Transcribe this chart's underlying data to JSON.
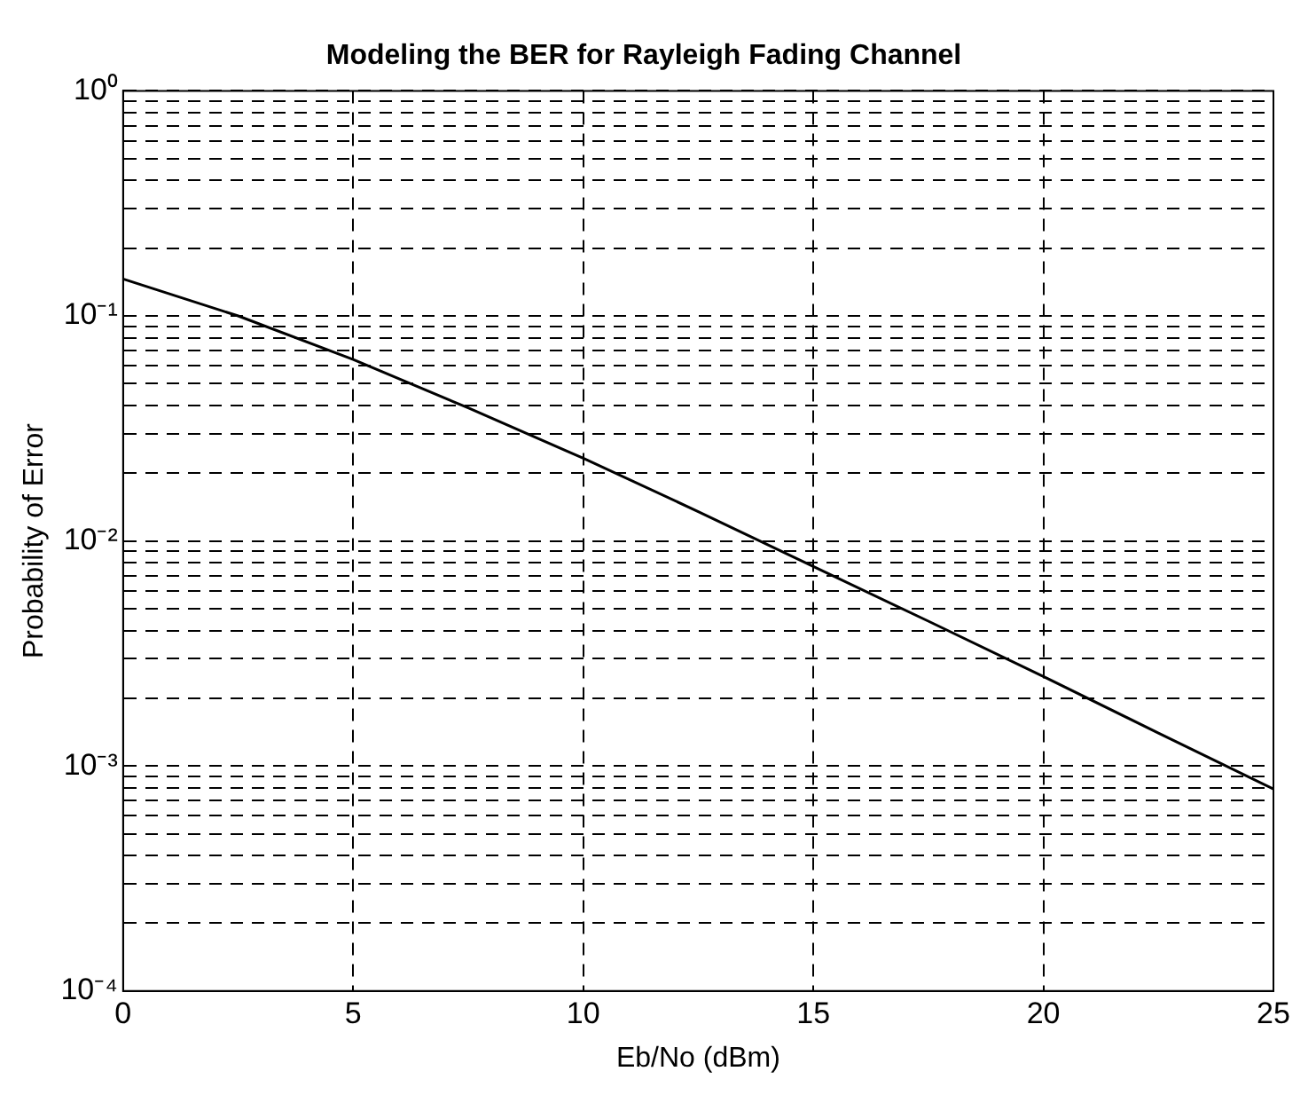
{
  "chart_data": {
    "type": "line",
    "title": "Modeling the BER for Rayleigh Fading Channel",
    "xlabel": "Eb/No (dBm)",
    "ylabel": "Probability of Error",
    "x": [
      0,
      2.5,
      5,
      7.5,
      10,
      12.5,
      15,
      17.5,
      20,
      22.5,
      25
    ],
    "series": [
      {
        "color": "#000000",
        "values": [
          0.146,
          0.1,
          0.064,
          0.039,
          0.0233,
          0.0135,
          0.0077,
          0.0044,
          0.0025,
          0.0014,
          0.00079
        ]
      }
    ],
    "xlim": [
      0,
      25
    ],
    "xticks": [
      0,
      5,
      10,
      15,
      20,
      25
    ],
    "ylim": [
      0.0001,
      1
    ],
    "log": "y",
    "yticks": [
      {
        "value": 0.0001,
        "label": "10⁻⁴"
      },
      {
        "value": 0.0002,
        "label": null
      },
      {
        "value": 0.0003,
        "label": null
      },
      {
        "value": 0.0004,
        "label": null
      },
      {
        "value": 0.0005,
        "label": null
      },
      {
        "value": 0.0006,
        "label": null
      },
      {
        "value": 0.0007,
        "label": null
      },
      {
        "value": 0.0008,
        "label": null
      },
      {
        "value": 0.0009,
        "label": null
      },
      {
        "value": 0.001,
        "label": "10⁻³"
      },
      {
        "value": 0.002,
        "label": null
      },
      {
        "value": 0.003,
        "label": null
      },
      {
        "value": 0.004,
        "label": null
      },
      {
        "value": 0.005,
        "label": null
      },
      {
        "value": 0.006,
        "label": null
      },
      {
        "value": 0.007,
        "label": null
      },
      {
        "value": 0.008,
        "label": null
      },
      {
        "value": 0.009,
        "label": null
      },
      {
        "value": 0.01,
        "label": "10⁻²"
      },
      {
        "value": 0.02,
        "label": null
      },
      {
        "value": 0.03,
        "label": null
      },
      {
        "value": 0.04,
        "label": null
      },
      {
        "value": 0.05,
        "label": null
      },
      {
        "value": 0.06,
        "label": null
      },
      {
        "value": 0.07,
        "label": null
      },
      {
        "value": 0.08,
        "label": null
      },
      {
        "value": 0.09,
        "label": null
      },
      {
        "value": 0.1,
        "label": "10⁻¹"
      },
      {
        "value": 0.2,
        "label": null
      },
      {
        "value": 0.3,
        "label": null
      },
      {
        "value": 0.4,
        "label": null
      },
      {
        "value": 0.5,
        "label": null
      },
      {
        "value": 0.6,
        "label": null
      },
      {
        "value": 0.7,
        "label": null
      },
      {
        "value": 0.8,
        "label": null
      },
      {
        "value": 0.9,
        "label": null
      },
      {
        "value": 1,
        "label": "10⁰"
      }
    ],
    "grid": true,
    "legend": false,
    "marker": "none",
    "line_style": "solid"
  }
}
